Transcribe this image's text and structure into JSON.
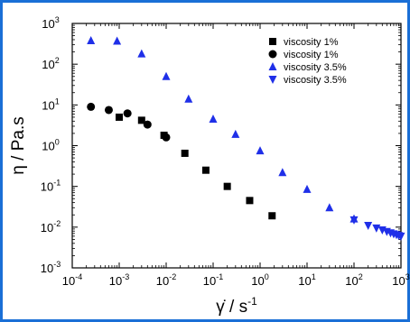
{
  "chart_data": {
    "type": "scatter",
    "title": "",
    "xlabel": "γ̇ / s",
    "xlabel_exponent": "-1",
    "ylabel": "η / Pa.s",
    "x_scale": "log",
    "y_scale": "log",
    "xlim": [
      0.0001,
      1000
    ],
    "ylim": [
      0.001,
      1000
    ],
    "grid": false,
    "legend_position": "top-right",
    "x_ticks": [
      {
        "base": "10",
        "exp": "-4"
      },
      {
        "base": "10",
        "exp": "-3"
      },
      {
        "base": "10",
        "exp": "-2"
      },
      {
        "base": "10",
        "exp": "-1"
      },
      {
        "base": "10",
        "exp": "0"
      },
      {
        "base": "10",
        "exp": "1"
      },
      {
        "base": "10",
        "exp": "2"
      },
      {
        "base": "10",
        "exp": "3"
      }
    ],
    "y_ticks": [
      {
        "base": "10",
        "exp": "-3"
      },
      {
        "base": "10",
        "exp": "-2"
      },
      {
        "base": "10",
        "exp": "-1"
      },
      {
        "base": "10",
        "exp": "0"
      },
      {
        "base": "10",
        "exp": "1"
      },
      {
        "base": "10",
        "exp": "2"
      },
      {
        "base": "10",
        "exp": "3"
      }
    ],
    "series": [
      {
        "name": "viscosity 1%",
        "marker": "square",
        "color": "#000000",
        "points": [
          [
            0.001,
            5.0
          ],
          [
            0.003,
            4.2
          ],
          [
            0.009,
            1.8
          ],
          [
            0.025,
            0.65
          ],
          [
            0.07,
            0.25
          ],
          [
            0.2,
            0.1
          ],
          [
            0.6,
            0.045
          ],
          [
            1.8,
            0.019
          ]
        ]
      },
      {
        "name": "viscosity 1%",
        "marker": "circle",
        "color": "#000000",
        "points": [
          [
            0.00025,
            9.0
          ],
          [
            0.0006,
            7.5
          ],
          [
            0.0015,
            6.2
          ],
          [
            0.004,
            3.3
          ],
          [
            0.01,
            1.6
          ]
        ]
      },
      {
        "name": "viscosity 3.5%",
        "marker": "triangle-up",
        "color": "#1f2fe8",
        "points": [
          [
            0.00025,
            380
          ],
          [
            0.0009,
            370
          ],
          [
            0.003,
            180
          ],
          [
            0.01,
            50
          ],
          [
            0.03,
            14
          ],
          [
            0.1,
            4.5
          ],
          [
            0.3,
            1.9
          ],
          [
            1.0,
            0.75
          ],
          [
            3.0,
            0.22
          ],
          [
            10.0,
            0.085
          ],
          [
            30.0,
            0.03
          ],
          [
            100.0,
            0.016
          ]
        ]
      },
      {
        "name": "viscosity 3.5%",
        "marker": "triangle-down",
        "color": "#1f2fe8",
        "points": [
          [
            100.0,
            0.015
          ],
          [
            200.0,
            0.011
          ],
          [
            300.0,
            0.0095
          ],
          [
            400.0,
            0.0085
          ],
          [
            500.0,
            0.0078
          ],
          [
            600.0,
            0.0072
          ],
          [
            700.0,
            0.0068
          ],
          [
            800.0,
            0.0065
          ],
          [
            900.0,
            0.0062
          ],
          [
            1000.0,
            0.006
          ]
        ]
      }
    ]
  }
}
